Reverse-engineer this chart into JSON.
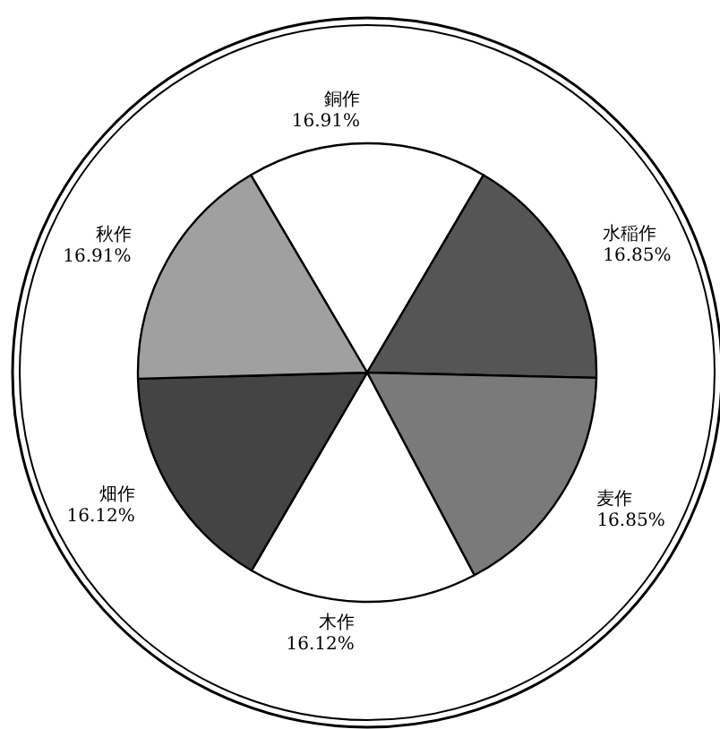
{
  "chart_data": {
    "type": "pie",
    "categories": [
      "銅作",
      "水稲作",
      "麦作",
      "木作",
      "畑作",
      "秋作"
    ],
    "values": [
      16.91,
      16.85,
      16.85,
      16.12,
      16.12,
      16.91
    ],
    "colors": [
      "#ffffff",
      "#555555",
      "#7a7a7a",
      "#ffffff",
      "#444444",
      "#a0a0a0"
    ],
    "value_labels": [
      "16.91%",
      "16.85%",
      "16.85%",
      "16.12%",
      "16.12%",
      "16.91%"
    ],
    "legend": false
  }
}
